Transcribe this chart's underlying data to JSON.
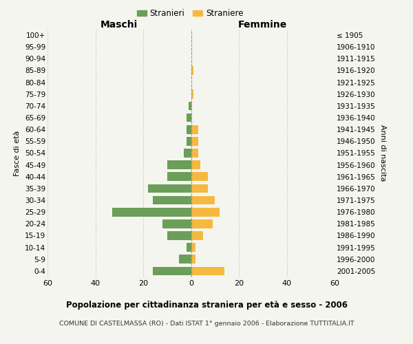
{
  "age_groups": [
    "100+",
    "95-99",
    "90-94",
    "85-89",
    "80-84",
    "75-79",
    "70-74",
    "65-69",
    "60-64",
    "55-59",
    "50-54",
    "45-49",
    "40-44",
    "35-39",
    "30-34",
    "25-29",
    "20-24",
    "15-19",
    "10-14",
    "5-9",
    "0-4"
  ],
  "birth_years": [
    "≤ 1905",
    "1906-1910",
    "1911-1915",
    "1916-1920",
    "1921-1925",
    "1926-1930",
    "1931-1935",
    "1936-1940",
    "1941-1945",
    "1946-1950",
    "1951-1955",
    "1956-1960",
    "1961-1965",
    "1966-1970",
    "1971-1975",
    "1976-1980",
    "1981-1985",
    "1986-1990",
    "1991-1995",
    "1996-2000",
    "2001-2005"
  ],
  "males": [
    0,
    0,
    0,
    0,
    0,
    0,
    1,
    2,
    2,
    2,
    3,
    10,
    10,
    18,
    16,
    33,
    12,
    10,
    2,
    5,
    16
  ],
  "females": [
    0,
    0,
    0,
    1,
    0,
    1,
    0,
    0,
    3,
    3,
    3,
    4,
    7,
    7,
    10,
    12,
    9,
    5,
    2,
    2,
    14
  ],
  "xlim": 60,
  "title1": "Popolazione per cittadinanza straniera per età e sesso - 2006",
  "title2": "COMUNE DI CASTELMASSA (RO) - Dati ISTAT 1° gennaio 2006 - Elaborazione TUTTITALIA.IT",
  "legend_stranieri": "Stranieri",
  "legend_straniere": "Straniere",
  "label_maschi": "Maschi",
  "label_femmine": "Femmine",
  "ylabel_left": "Fasce di età",
  "ylabel_right": "Anni di nascita",
  "bg_color": "#f5f5ef",
  "bar_color_male": "#6b9e58",
  "bar_color_female": "#f5b940",
  "grid_color": "#cccccc",
  "center_line_color": "#999999"
}
